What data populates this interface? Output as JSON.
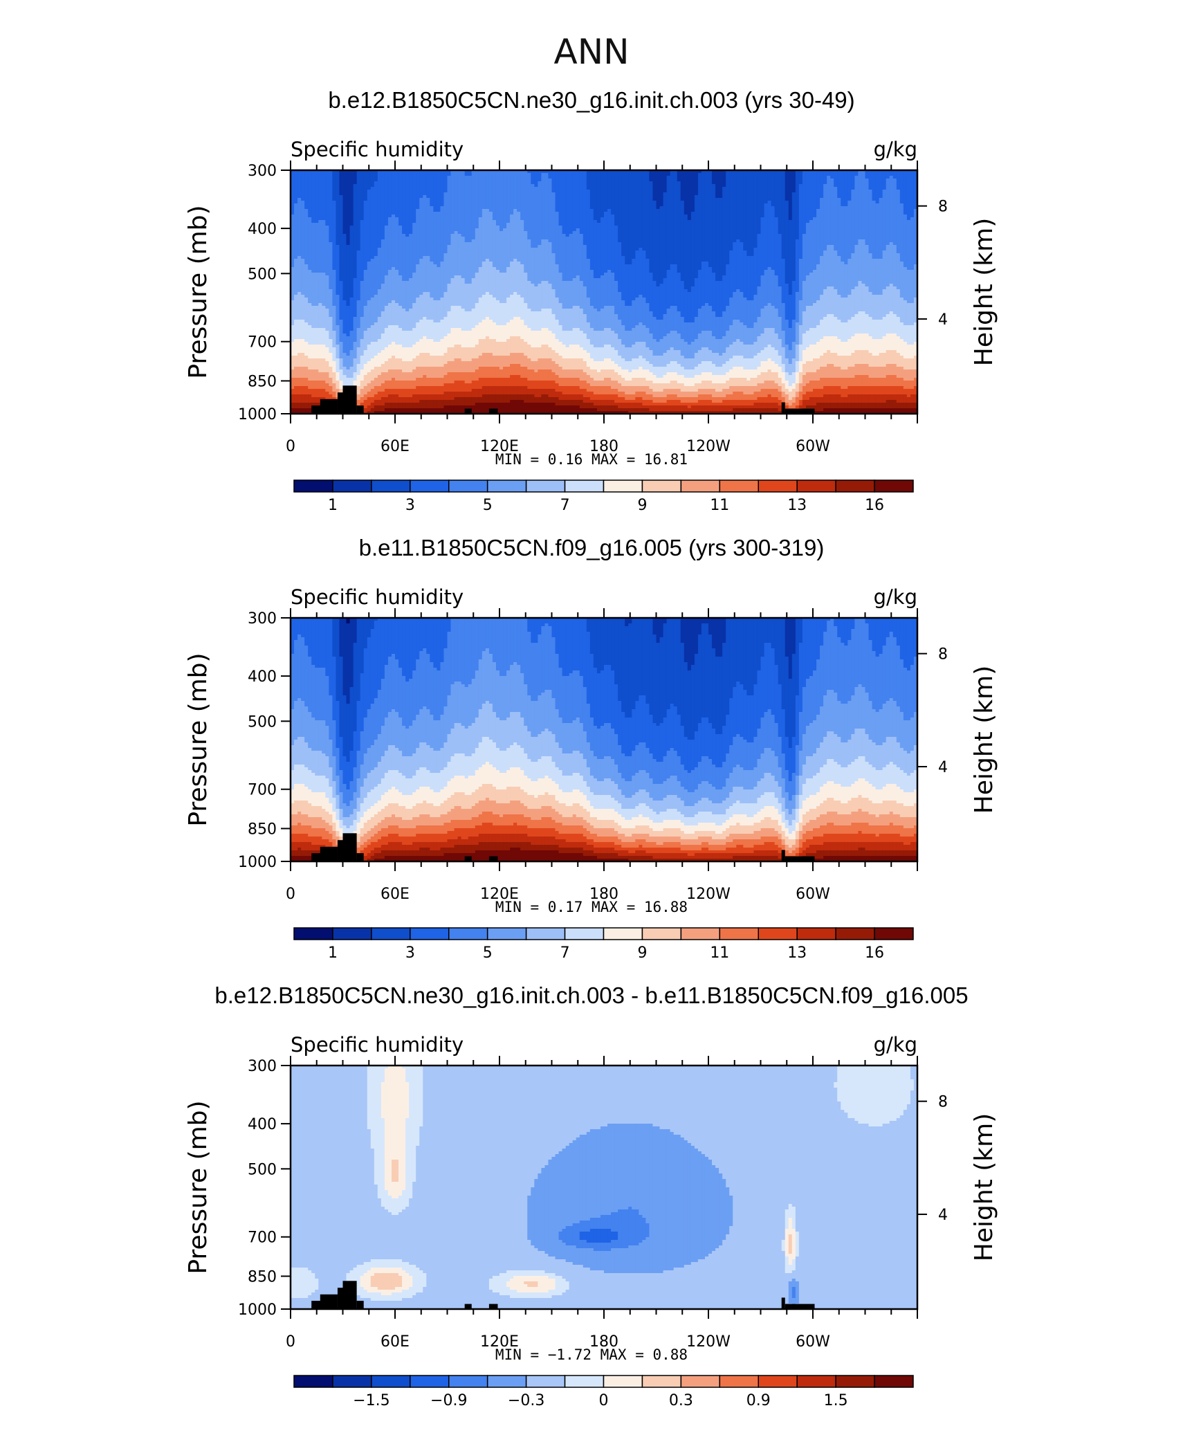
{
  "figure_title": "ANN",
  "field_label": "Specific humidity",
  "units": "g/kg",
  "axes": {
    "pressure_title": "Pressure (mb)",
    "height_title": "Height (km)",
    "pressure_ticks": [
      "300",
      "400",
      "500",
      "700",
      "850",
      "1000"
    ],
    "height_ticks": [
      "8",
      "4"
    ],
    "longitude_ticks": [
      "0",
      "60E",
      "120E",
      "180",
      "120W",
      "60W"
    ]
  },
  "colors": {
    "abs_scale": [
      "#020e70",
      "#0832a8",
      "#0f4ecc",
      "#1f63e6",
      "#4382ef",
      "#6b9ff3",
      "#9dbff7",
      "#cbdffb",
      "#fbefe4",
      "#f8cdb4",
      "#f4a07f",
      "#ef7448",
      "#e0461c",
      "#bf2b0d",
      "#951b07",
      "#700806"
    ],
    "diff_scale": [
      "#020e70",
      "#0832a8",
      "#0f4ecc",
      "#1f63e6",
      "#4382ef",
      "#6b9ff3",
      "#a8c6f7",
      "#d6e7fc",
      "#fbefe4",
      "#f8cdb4",
      "#f4a07f",
      "#ef7448",
      "#e0461c",
      "#bf2b0d",
      "#951b07",
      "#700806"
    ],
    "terrain": "#000000"
  },
  "panels": [
    {
      "title": "b.e12.B1850C5CN.ne30_g16.init.ch.003 (yrs 30-49)",
      "stat_line": "MIN =    0.16   MAX =   16.81",
      "colorbar_labels": [
        "1",
        "3",
        "5",
        "7",
        "9",
        "11",
        "13",
        "16"
      ]
    },
    {
      "title": "b.e11.B1850C5CN.f09_g16.005 (yrs 300-319)",
      "stat_line": "MIN =    0.17   MAX =   16.88",
      "colorbar_labels": [
        "1",
        "3",
        "5",
        "7",
        "9",
        "11",
        "13",
        "16"
      ]
    },
    {
      "title": "b.e12.B1850C5CN.ne30_g16.init.ch.003 - b.e11.B1850C5CN.f09_g16.005",
      "stat_line": "MIN =   −1.72   MAX =    0.88",
      "colorbar_labels": [
        "−1.5",
        "−0.9",
        "−0.3",
        "0",
        "0.3",
        "0.9",
        "1.5"
      ]
    }
  ],
  "chart_data": [
    {
      "type": "heatmap",
      "title": "b.e12.B1850C5CN.ne30_g16.init.ch.003 (yrs 30-49)",
      "variable": "Specific humidity",
      "units": "g/kg",
      "xlabel": "",
      "ylabel": "Pressure (mb)",
      "y2label": "Height (km)",
      "x_ticks": [
        "0",
        "60E",
        "120E",
        "180",
        "120W",
        "60W"
      ],
      "y_ticks": [
        300,
        400,
        500,
        700,
        850,
        1000
      ],
      "ylim": [
        1000,
        300
      ],
      "y_scale": "log-pressure",
      "min": 0.16,
      "max": 16.81,
      "contour_levels": [
        0.5,
        1,
        2,
        3,
        4,
        5,
        6,
        7,
        8,
        9,
        10,
        11,
        12,
        13,
        14,
        16
      ],
      "colorbar_labels": [
        "1",
        "3",
        "5",
        "7",
        "9",
        "11",
        "13",
        "16"
      ]
    },
    {
      "type": "heatmap",
      "title": "b.e11.B1850C5CN.f09_g16.005 (yrs 300-319)",
      "variable": "Specific humidity",
      "units": "g/kg",
      "xlabel": "",
      "ylabel": "Pressure (mb)",
      "y2label": "Height (km)",
      "x_ticks": [
        "0",
        "60E",
        "120E",
        "180",
        "120W",
        "60W"
      ],
      "y_ticks": [
        300,
        400,
        500,
        700,
        850,
        1000
      ],
      "ylim": [
        1000,
        300
      ],
      "y_scale": "log-pressure",
      "min": 0.17,
      "max": 16.88,
      "contour_levels": [
        0.5,
        1,
        2,
        3,
        4,
        5,
        6,
        7,
        8,
        9,
        10,
        11,
        12,
        13,
        14,
        16
      ],
      "colorbar_labels": [
        "1",
        "3",
        "5",
        "7",
        "9",
        "11",
        "13",
        "16"
      ]
    },
    {
      "type": "heatmap",
      "title": "b.e12.B1850C5CN.ne30_g16.init.ch.003 - b.e11.B1850C5CN.f09_g16.005",
      "variable": "Specific humidity",
      "units": "g/kg",
      "xlabel": "",
      "ylabel": "Pressure (mb)",
      "y2label": "Height (km)",
      "x_ticks": [
        "0",
        "60E",
        "120E",
        "180",
        "120W",
        "60W"
      ],
      "y_ticks": [
        300,
        400,
        500,
        700,
        850,
        1000
      ],
      "ylim": [
        1000,
        300
      ],
      "y_scale": "log-pressure",
      "min": -1.72,
      "max": 0.88,
      "contour_levels": [
        -1.8,
        -1.5,
        -1.2,
        -0.9,
        -0.6,
        -0.3,
        -0.1,
        0,
        0.1,
        0.3,
        0.6,
        0.9,
        1.2,
        1.5,
        1.8
      ],
      "colorbar_labels": [
        "−1.5",
        "−0.9",
        "−0.3",
        "0",
        "0.3",
        "0.9",
        "1.5"
      ]
    }
  ]
}
